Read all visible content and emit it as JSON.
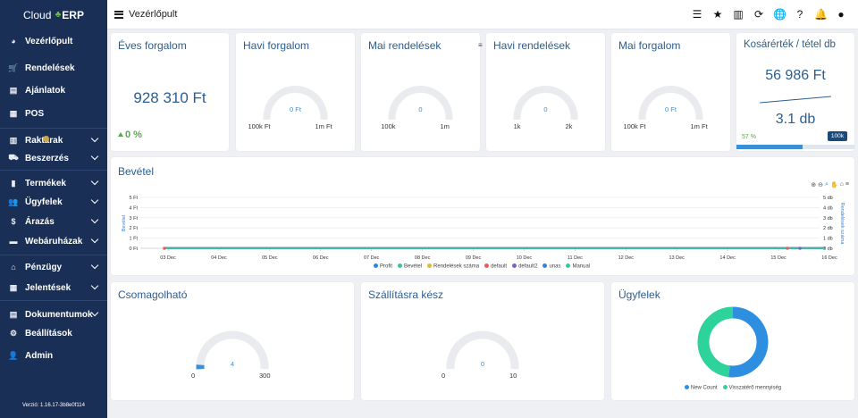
{
  "brand": {
    "left": "Cloud",
    "right": "ERP"
  },
  "sidebar": {
    "items": [
      {
        "label": "Vezérlőpult",
        "icon": "palette-icon",
        "glyph": "◕",
        "chevron": false
      },
      {
        "label": "Rendelések",
        "icon": "cart-icon",
        "glyph": "🛒",
        "chevron": false
      },
      {
        "label": "Ajánlatok",
        "icon": "file-icon",
        "glyph": "▤",
        "chevron": false
      },
      {
        "label": "POS",
        "icon": "cash-register-icon",
        "glyph": "▦",
        "chevron": false
      },
      {
        "label": "Raktárak",
        "icon": "warehouse-icon",
        "glyph": "▥",
        "chevron": true
      },
      {
        "label": "Beszerzés",
        "icon": "truck-icon",
        "glyph": "⛟",
        "chevron": true
      },
      {
        "label": "Termékek",
        "icon": "barcode-icon",
        "glyph": "▮",
        "chevron": true
      },
      {
        "label": "Ügyfelek",
        "icon": "users-icon",
        "glyph": "👥",
        "chevron": true
      },
      {
        "label": "Árazás",
        "icon": "dollar-icon",
        "glyph": "$",
        "chevron": true
      },
      {
        "label": "Webáruházak",
        "icon": "store-icon",
        "glyph": "▬",
        "chevron": true
      },
      {
        "label": "Pénzügy",
        "icon": "bank-icon",
        "glyph": "⌂",
        "chevron": true
      },
      {
        "label": "Jelentések",
        "icon": "table-icon",
        "glyph": "▦",
        "chevron": true
      },
      {
        "label": "Dokumentumok",
        "icon": "document-icon",
        "glyph": "▤",
        "chevron": true
      },
      {
        "label": "Beállítások",
        "icon": "gear-icon",
        "glyph": "⚙",
        "chevron": false
      },
      {
        "label": "Admin",
        "icon": "user-gear-icon",
        "glyph": "👤",
        "chevron": false
      }
    ],
    "version": "Verzió: 1.16.17-3b8e0f114"
  },
  "topbar": {
    "title": "Vezérlőpult",
    "icons": [
      {
        "name": "tasks-icon",
        "glyph": "☰"
      },
      {
        "name": "star-icon",
        "glyph": "★"
      },
      {
        "name": "building-icon",
        "glyph": "▥"
      },
      {
        "name": "sync-icon",
        "glyph": "⟳"
      },
      {
        "name": "globe-icon",
        "glyph": "🌐"
      },
      {
        "name": "help-icon",
        "glyph": "?"
      },
      {
        "name": "bell-icon",
        "glyph": "🔔"
      },
      {
        "name": "user-icon",
        "glyph": "●"
      }
    ]
  },
  "cards": {
    "annual": {
      "title": "Éves forgalom",
      "value": "928 310 Ft",
      "change": "0 %"
    },
    "monthly": {
      "title": "Havi forgalom",
      "gauge_value": "0 Ft",
      "min": "100k Ft",
      "max": "1m Ft",
      "level": 0
    },
    "daily_orders": {
      "title": "Mai rendelések",
      "gauge_value": "0",
      "min": "100k",
      "max": "1m",
      "level": 0
    },
    "monthly_orders": {
      "title": "Havi rendelések",
      "gauge_value": "0",
      "min": "1k",
      "max": "2k",
      "level": 0
    },
    "daily_revenue": {
      "title": "Mai forgalom",
      "gauge_value": "0 Ft",
      "min": "100k Ft",
      "max": "1m Ft",
      "level": 0
    },
    "basket": {
      "title": "Kosárérték / tétel db",
      "value": "56 986 Ft",
      "items": "3.1 db",
      "progress_label": "57 %",
      "progress": 57,
      "badge": "100k"
    },
    "packable": {
      "title": "Csomagolható",
      "gauge_value": "4",
      "min": "0",
      "max": "300",
      "level": 0.013
    },
    "ready": {
      "title": "Szállításra kész",
      "gauge_value": "0",
      "min": "0",
      "max": "10",
      "level": 0
    },
    "customers": {
      "title": "Ügyfelek"
    }
  },
  "chart_data": [
    {
      "type": "line",
      "title": "Bevétel",
      "ylabel": "Bevétel",
      "y2label": "Rendelések száma",
      "x": [
        "03 Dec",
        "04 Dec",
        "05 Dec",
        "06 Dec",
        "07 Dec",
        "08 Dec",
        "09 Dec",
        "10 Dec",
        "11 Dec",
        "12 Dec",
        "13 Dec",
        "14 Dec",
        "15 Dec",
        "16 Dec"
      ],
      "yticks": [
        "0 Ft",
        "1 Ft",
        "2 Ft",
        "3 Ft",
        "4 Ft",
        "5 Ft"
      ],
      "y2ticks": [
        "0 db",
        "1 db",
        "2 db",
        "3 db",
        "4 db",
        "5 db"
      ],
      "ylim": [
        0,
        5
      ],
      "series": [
        {
          "name": "Profit",
          "color": "#2e86de",
          "values": [
            0,
            0,
            0,
            0,
            0,
            0,
            0,
            0,
            0,
            0,
            0,
            0,
            0,
            0
          ]
        },
        {
          "name": "Bevétel",
          "color": "#2ecc9a",
          "values": [
            0,
            0,
            0,
            0,
            0,
            0,
            0,
            0,
            0,
            0,
            0,
            0,
            0,
            0
          ]
        },
        {
          "name": "Rendelések száma",
          "color": "#e0b93a",
          "values": [
            0,
            0,
            0,
            0,
            0,
            0,
            0,
            0,
            0,
            0,
            0,
            0,
            0,
            0
          ]
        },
        {
          "name": "default",
          "color": "#e85d5d",
          "values": [
            0,
            0,
            0,
            0,
            0,
            0,
            0,
            0,
            0,
            0,
            0,
            0,
            0,
            0
          ]
        },
        {
          "name": "default2",
          "color": "#7a63c9",
          "values": [
            0,
            0,
            0,
            0,
            0,
            0,
            0,
            0,
            0,
            0,
            0,
            0,
            0,
            0
          ]
        },
        {
          "name": "unas",
          "color": "#2e86de",
          "values": [
            0,
            0,
            0,
            0,
            0,
            0,
            0,
            0,
            0,
            0,
            0,
            0,
            0,
            0
          ]
        },
        {
          "name": "Manual",
          "color": "#2ecc9a",
          "values": [
            0,
            0,
            0,
            0,
            0,
            0,
            0,
            0,
            0,
            0,
            0,
            0,
            0,
            0
          ]
        }
      ]
    },
    {
      "type": "pie",
      "title": "Ügyfelek",
      "series": [
        {
          "name": "New Count",
          "color": "#2e8fe0",
          "value": 52
        },
        {
          "name": "Visszatérő mennyiség",
          "color": "#2ed39b",
          "value": 48
        }
      ]
    }
  ]
}
